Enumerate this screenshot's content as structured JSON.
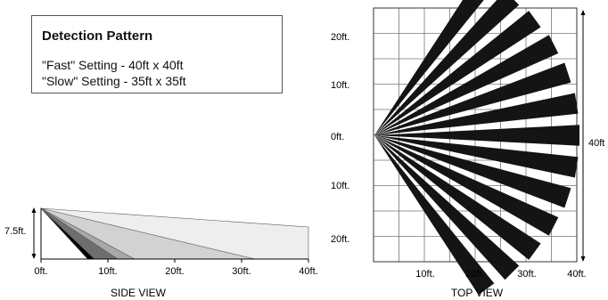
{
  "legend": {
    "title": "Detection Pattern",
    "lines": [
      "\"Fast\" Setting - 40ft x 40ft",
      "\"Slow\" Setting - 35ft x 35ft"
    ]
  },
  "side_view": {
    "caption": "SIDE VIEW",
    "height_label": "7.5ft.",
    "x_ticks": [
      "0ft.",
      "10ft.",
      "20ft.",
      "30ft.",
      "40ft."
    ],
    "zones": [
      {
        "reach_ft": 40,
        "color": "#eeeeee"
      },
      {
        "reach_ft": 32,
        "color": "#d2d2d2"
      },
      {
        "reach_ft": 14,
        "color": "#a8a8a8"
      },
      {
        "reach_ft": 11.5,
        "color": "#6e6e6e"
      },
      {
        "reach_ft": 8,
        "color": "#000000"
      }
    ]
  },
  "top_view": {
    "caption": "TOP VIEW",
    "y_ticks": [
      "20ft.",
      "10ft.",
      "0ft.",
      "10ft.",
      "20ft."
    ],
    "x_ticks": [
      "10ft.",
      "20ft.",
      "30ft.",
      "40ft."
    ],
    "range_label": "40ft",
    "beam_count": 13
  }
}
